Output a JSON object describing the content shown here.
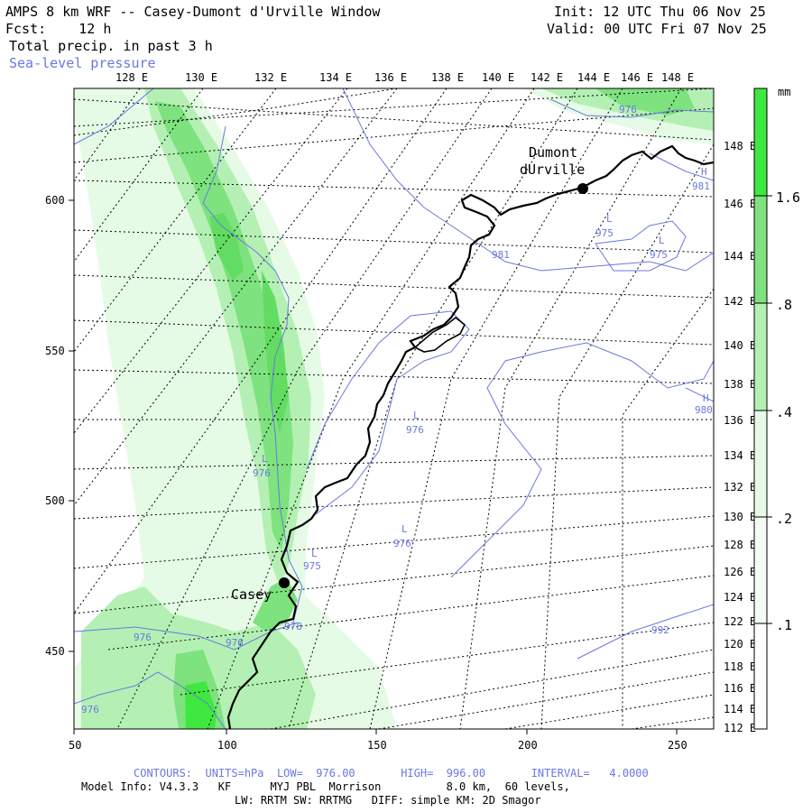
{
  "header": {
    "title": "AMPS 8 km WRF -- Casey-Dumont d'Urville Window",
    "forecast_label": "Fcst:    12 h",
    "field": "Total precip. in past 3 h",
    "overlay": "Sea-level pressure",
    "init": "Init: 12 UTC Thu 06 Nov 25",
    "valid": "Valid: 00 UTC Fri 07 Nov 25"
  },
  "map": {
    "top_lon_labels": [
      "128 E",
      "130 E",
      "132 E",
      "134 E",
      "136 E",
      "138 E",
      "140 E",
      "142 E",
      "144 E",
      "146 E",
      "148 E"
    ],
    "right_lat_labels": [
      "148 E",
      "146 E",
      "144 E",
      "142 E",
      "140 E",
      "138 E",
      "136 E",
      "134 E",
      "132 E",
      "130 E",
      "128 E",
      "126 E",
      "124 E",
      "122 E",
      "120 E",
      "118 E",
      "116 E",
      "114 E",
      "112 E"
    ],
    "x_axis_labels": [
      "50",
      "100",
      "150",
      "200",
      "250"
    ],
    "y_axis_labels": [
      "600",
      "550",
      "500",
      "450"
    ],
    "stations": [
      {
        "name": "Dumont\ndUrville",
        "line1": "Dumont",
        "line2": "dUrville"
      },
      {
        "name": "Casey"
      }
    ],
    "pressure_labels": [
      "976",
      "976",
      "981",
      "975",
      "975",
      "981",
      "976",
      "976",
      "976",
      "975",
      "978",
      "976",
      "976",
      "976",
      "992",
      "980"
    ],
    "pressure_markers": [
      "L",
      "L",
      "L",
      "L",
      "L",
      "L",
      "H",
      "H"
    ],
    "colors": {
      "precip_light": "#e6fbe6",
      "precip_mid": "#b4f0b4",
      "precip_heavy": "#7ee27e",
      "precip_max": "#3ee83e",
      "contour": "#6a78e0",
      "coast": "#000000"
    }
  },
  "colorbar": {
    "unit": "mm",
    "labels": [
      "1.6",
      ".8",
      ".4",
      ".2",
      ".1"
    ],
    "colors": [
      "#3ee83e",
      "#7ee27e",
      "#b4f0b4",
      "#e6fbe6",
      "#ffffff"
    ]
  },
  "footer": {
    "contours": "CONTOURS:  UNITS=hPa  LOW=  976.00       HIGH=  996.00       INTERVAL=   4.0000",
    "model_info": "Model Info: V4.3.3   KF      MYJ PBL  Morrison          8.0 km,  60 levels,",
    "physics": "LW: RRTM SW: RRTMG   DIFF: simple KM: 2D Smagor"
  }
}
